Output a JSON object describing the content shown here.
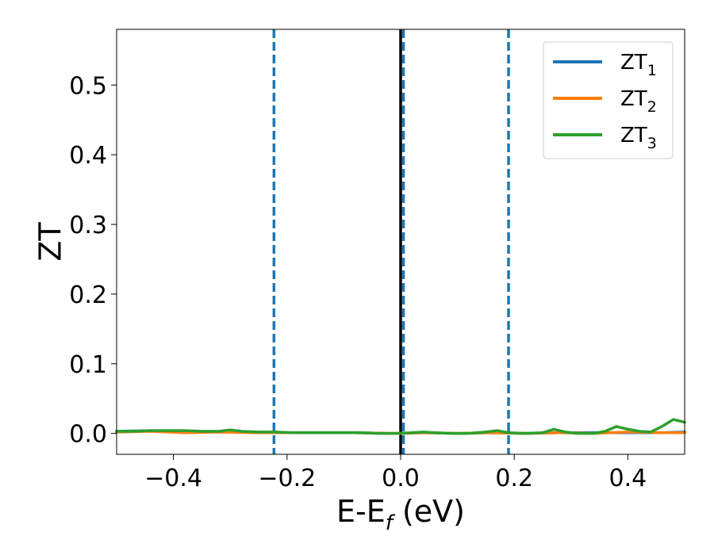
{
  "chart_data": {
    "type": "line",
    "xlabel": "E-E",
    "xlabel_sub": "f",
    "xlabel_unit": " (eV)",
    "ylabel": "ZT",
    "xlim": [
      -0.5,
      0.5
    ],
    "ylim": [
      -0.03,
      0.58
    ],
    "xticks": [
      -0.4,
      -0.2,
      0.0,
      0.2,
      0.4
    ],
    "xtick_labels": [
      "−0.4",
      "−0.2",
      "0.0",
      "0.2",
      "0.4"
    ],
    "yticks": [
      0.0,
      0.1,
      0.2,
      0.3,
      0.4,
      0.5
    ],
    "ytick_labels": [
      "0.0",
      "0.1",
      "0.2",
      "0.3",
      "0.4",
      "0.5"
    ],
    "grid": false,
    "legend_position": "top-right",
    "series": [
      {
        "name": "ZT",
        "name_sub": "1",
        "color": "#1f77b4",
        "x": [
          -0.5,
          -0.44,
          -0.38,
          -0.32,
          -0.26,
          -0.2,
          -0.14,
          -0.08,
          -0.02,
          0.0,
          0.04,
          0.1,
          0.16,
          0.22,
          0.28,
          0.34,
          0.4,
          0.46,
          0.5
        ],
        "y": [
          0.003,
          0.004,
          0.003,
          0.002,
          0.002,
          0.001,
          0.001,
          0.001,
          0.0,
          0.0,
          0.001,
          0.0,
          0.001,
          0.0,
          0.001,
          0.001,
          0.001,
          0.001,
          0.002
        ]
      },
      {
        "name": "ZT",
        "name_sub": "2",
        "color": "#ff7f0e",
        "x": [
          -0.5,
          -0.44,
          -0.38,
          -0.32,
          -0.26,
          -0.2,
          -0.14,
          -0.08,
          -0.02,
          0.0,
          0.04,
          0.1,
          0.16,
          0.22,
          0.28,
          0.34,
          0.4,
          0.46,
          0.5
        ],
        "y": [
          0.002,
          0.003,
          0.001,
          0.002,
          0.001,
          0.001,
          0.001,
          0.001,
          0.0,
          0.0,
          0.001,
          0.0,
          0.001,
          0.0,
          0.001,
          0.0,
          0.002,
          0.001,
          0.001
        ]
      },
      {
        "name": "ZT",
        "name_sub": "3",
        "color": "#2ca02c",
        "x": [
          -0.5,
          -0.47,
          -0.44,
          -0.41,
          -0.38,
          -0.35,
          -0.32,
          -0.3,
          -0.28,
          -0.25,
          -0.22,
          -0.19,
          -0.16,
          -0.13,
          -0.1,
          -0.07,
          -0.04,
          -0.01,
          0.02,
          0.04,
          0.06,
          0.09,
          0.12,
          0.15,
          0.17,
          0.19,
          0.22,
          0.25,
          0.27,
          0.29,
          0.31,
          0.34,
          0.36,
          0.38,
          0.4,
          0.42,
          0.44,
          0.46,
          0.48,
          0.5
        ],
        "y": [
          0.003,
          0.003,
          0.004,
          0.004,
          0.004,
          0.003,
          0.003,
          0.005,
          0.003,
          0.002,
          0.002,
          0.001,
          0.001,
          0.001,
          0.001,
          0.001,
          0.0,
          0.0,
          0.001,
          0.002,
          0.001,
          0.0,
          0.0,
          0.002,
          0.004,
          0.001,
          0.0,
          0.001,
          0.006,
          0.002,
          0.0,
          0.0,
          0.003,
          0.01,
          0.006,
          0.003,
          0.002,
          0.01,
          0.02,
          0.016
        ]
      }
    ],
    "vlines": [
      {
        "x": 0.0,
        "color": "#000000",
        "style": "solid"
      },
      {
        "x": -0.223,
        "color": "#1f77b4",
        "style": "dashed"
      },
      {
        "x": 0.005,
        "color": "#1f77b4",
        "style": "dashed"
      },
      {
        "x": 0.19,
        "color": "#1f77b4",
        "style": "dashed"
      }
    ]
  }
}
